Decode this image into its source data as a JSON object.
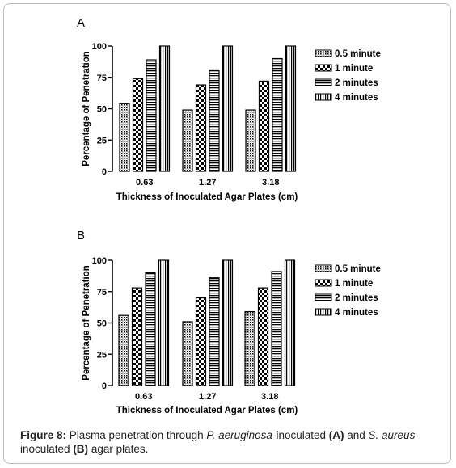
{
  "chart_data": [
    {
      "type": "bar",
      "panel_label": "A",
      "categories": [
        "0.63",
        "1.27",
        "3.18"
      ],
      "series": [
        {
          "name": "0.5 minute",
          "pattern": "dots",
          "values": [
            54,
            49,
            49
          ]
        },
        {
          "name": "1 minute",
          "pattern": "checker",
          "values": [
            74,
            69,
            72
          ]
        },
        {
          "name": "2 minutes",
          "pattern": "hstripes",
          "values": [
            89,
            81,
            90
          ]
        },
        {
          "name": "4 minutes",
          "pattern": "vstripes",
          "values": [
            100,
            100,
            100
          ]
        }
      ],
      "xlabel": "Thickness of Inoculated Agar Plates (cm)",
      "ylabel": "Percentage of Penetration",
      "ylim": [
        0,
        100
      ],
      "yticks": [
        "0",
        "25",
        "50",
        "75",
        "100"
      ],
      "legend_position": "right",
      "grid": false
    },
    {
      "type": "bar",
      "panel_label": "B",
      "categories": [
        "0.63",
        "1.27",
        "3.18"
      ],
      "series": [
        {
          "name": "0.5 minute",
          "pattern": "dots",
          "values": [
            56,
            51,
            59
          ]
        },
        {
          "name": "1 minute",
          "pattern": "checker",
          "values": [
            78,
            70,
            78
          ]
        },
        {
          "name": "2 minutes",
          "pattern": "hstripes",
          "values": [
            90,
            86,
            91
          ]
        },
        {
          "name": "4 minutes",
          "pattern": "vstripes",
          "values": [
            100,
            100,
            100
          ]
        }
      ],
      "xlabel": "Thickness of Inoculated Agar Plates (cm)",
      "ylabel": "Percentage of Penetration",
      "ylim": [
        0,
        100
      ],
      "yticks": [
        "0",
        "25",
        "50",
        "75",
        "100"
      ],
      "legend_position": "right",
      "grid": false
    }
  ],
  "caption": {
    "label": "Figure 8:",
    "text1": " Plasma penetration through ",
    "organism1": "P. aeruginosa",
    "text2": "-inoculated ",
    "panel1": "(A)",
    "text3": " and ",
    "organism2": "S. aureus",
    "text4": "-inoculated ",
    "panel2": "(B)",
    "text5": " agar plates."
  }
}
